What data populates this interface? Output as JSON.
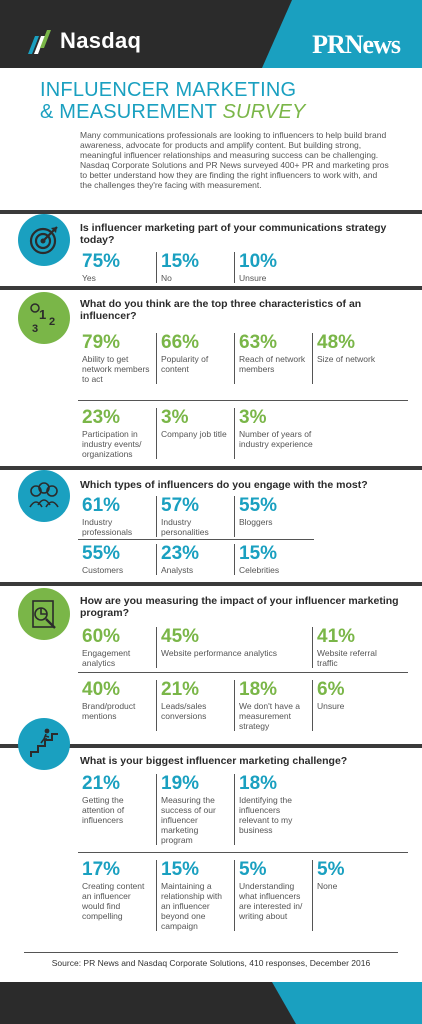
{
  "header": {
    "nasdaq_logo_text": "Nasdaq",
    "prnews_logo_text": "PRNews",
    "brand_teal": "#1aa0c0",
    "brand_green": "#7ab648",
    "header_dark": "#2b2b2b"
  },
  "title": {
    "line1": "INFLUENCER MARKETING",
    "line2a": "& MEASUREMENT ",
    "line2b": "SURVEY"
  },
  "intro": "Many communications professionals are looking to influencers to help build brand awareness, advocate for products and amplify content. But building strong, meaningful influencer relationships and measuring success can be challenging. Nasdaq Corporate Solutions and PR News surveyed 400+ PR and marketing pros to better understand how they are finding the right influencers to work with, and the challenges they're facing with measurement.",
  "sections": [
    {
      "icon": "target-icon",
      "question": "Is influencer marketing part of your communications strategy today?",
      "rows": [
        [
          {
            "pct": "75%",
            "label": "Yes"
          },
          {
            "pct": "15%",
            "label": "No"
          },
          {
            "pct": "10%",
            "label": "Unsure"
          }
        ]
      ]
    },
    {
      "icon": "ranking-icon",
      "question": "What do you think are the top three characteristics of an influencer?",
      "rows": [
        [
          {
            "pct": "79%",
            "label": "Ability to get network members to act"
          },
          {
            "pct": "66%",
            "label": "Popularity of content"
          },
          {
            "pct": "63%",
            "label": "Reach of network members"
          },
          {
            "pct": "48%",
            "label": "Size of network"
          }
        ],
        [
          {
            "pct": "23%",
            "label": "Participation in industry events/ organizations"
          },
          {
            "pct": "3%",
            "label": "Company job title"
          },
          {
            "pct": "3%",
            "label": "Number of years of industry experience"
          }
        ]
      ]
    },
    {
      "icon": "people-stars-icon",
      "question": "Which types of influencers do you engage with the most?",
      "rows": [
        [
          {
            "pct": "61%",
            "label": "Industry professionals"
          },
          {
            "pct": "57%",
            "label": "Industry personalities"
          },
          {
            "pct": "55%",
            "label": "Bloggers"
          }
        ],
        [
          {
            "pct": "55%",
            "label": "Customers"
          },
          {
            "pct": "23%",
            "label": "Analysts"
          },
          {
            "pct": "15%",
            "label": "Celebrities"
          }
        ]
      ]
    },
    {
      "icon": "analytics-report-icon",
      "question": "How are you measuring the impact of your influencer marketing program?",
      "rows": [
        [
          {
            "pct": "60%",
            "label": "Engagement analytics"
          },
          {
            "pct": "45%",
            "label": "Website performance analytics"
          },
          {
            "pct": "41%",
            "label": "Website referral traffic"
          }
        ],
        [
          {
            "pct": "40%",
            "label": "Brand/product mentions"
          },
          {
            "pct": "21%",
            "label": "Leads/sales conversions"
          },
          {
            "pct": "18%",
            "label": "We don't have a measurement strategy"
          },
          {
            "pct": "6%",
            "label": "Unsure"
          }
        ]
      ]
    },
    {
      "icon": "stairs-climber-icon",
      "question": "What is your biggest influencer marketing challenge?",
      "rows": [
        [
          {
            "pct": "21%",
            "label": "Getting the attention of influencers"
          },
          {
            "pct": "19%",
            "label": "Measuring the success of our influencer marketing program"
          },
          {
            "pct": "18%",
            "label": "Identifying the influencers relevant to my business"
          }
        ],
        [
          {
            "pct": "17%",
            "label": "Creating content an influencer would find compelling"
          },
          {
            "pct": "15%",
            "label": "Maintaining a relationship with an influencer beyond one campaign"
          },
          {
            "pct": "5%",
            "label": "Understanding what influencers are interested in/ writing about"
          },
          {
            "pct": "5%",
            "label": "None"
          }
        ]
      ]
    }
  ],
  "source": "Source: PR News and Nasdaq Corporate Solutions, 410 responses, December 2016"
}
